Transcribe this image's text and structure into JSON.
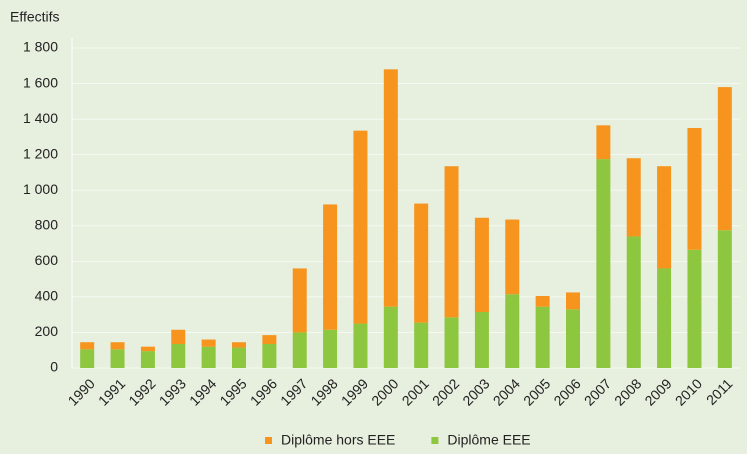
{
  "chart_data": {
    "type": "stacked_bar",
    "y_axis_label": "Effectifs",
    "categories": [
      "1990",
      "1991",
      "1992",
      "1993",
      "1994",
      "1995",
      "1996",
      "1997",
      "1998",
      "1999",
      "2000",
      "2001",
      "2002",
      "2003",
      "2004",
      "2005",
      "2006",
      "2007",
      "2008",
      "2009",
      "2010",
      "2011"
    ],
    "series": [
      {
        "name": "Diplôme hors EEE",
        "color": "#f7941d",
        "values": [
          40,
          40,
          25,
          80,
          40,
          30,
          50,
          360,
          705,
          1085,
          1335,
          670,
          850,
          530,
          420,
          60,
          95,
          190,
          440,
          575,
          685,
          805
        ]
      },
      {
        "name": "Diplôme EEE",
        "color": "#8dc63f",
        "values": [
          105,
          105,
          95,
          135,
          120,
          115,
          135,
          200,
          215,
          250,
          345,
          255,
          285,
          315,
          415,
          345,
          330,
          1175,
          740,
          560,
          665,
          775
        ]
      }
    ],
    "ylim": [
      0,
      1800
    ],
    "yticks": [
      0,
      200,
      400,
      600,
      800,
      {
        "value": 1000,
        "label": "1 000"
      },
      {
        "value": 1200,
        "label": "1 200"
      },
      {
        "value": 1400,
        "label": "1 400"
      },
      {
        "value": 1600,
        "label": "1 600"
      },
      {
        "value": 1800,
        "label": "1 800"
      }
    ],
    "grid": true,
    "legend": "bottom"
  }
}
